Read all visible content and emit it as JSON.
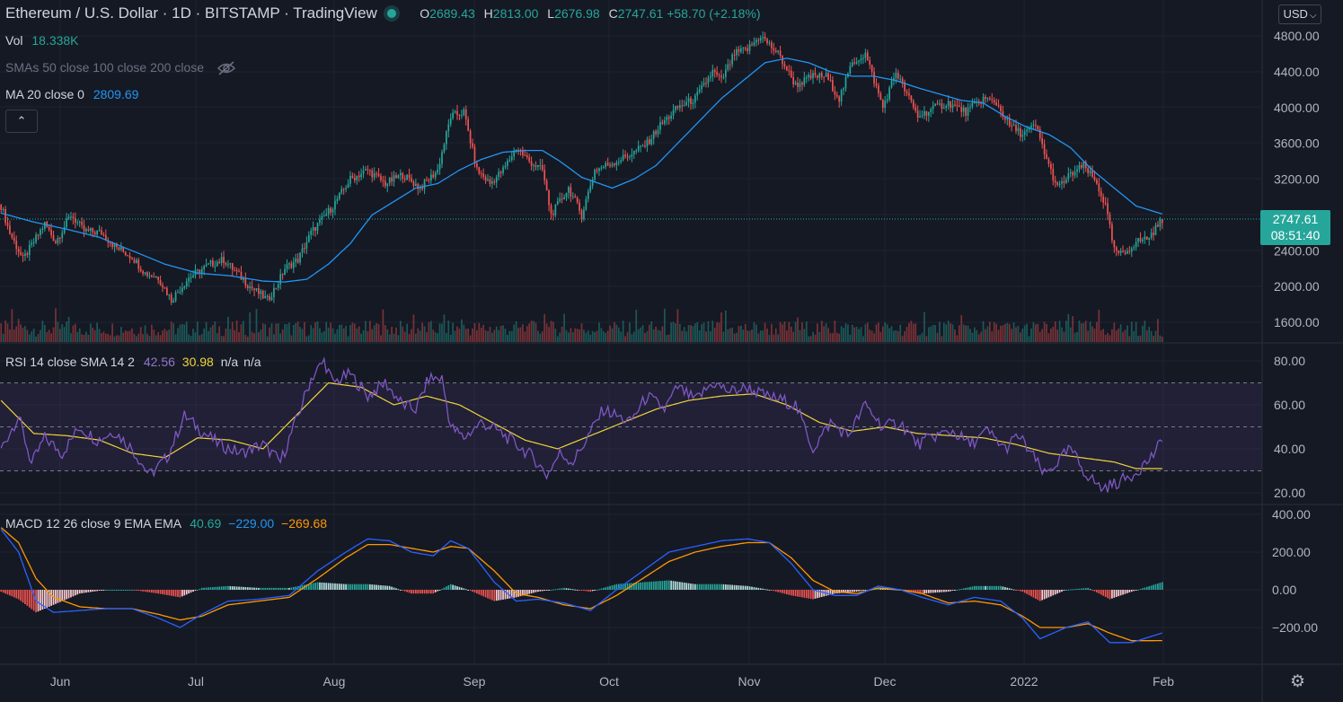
{
  "header": {
    "title": "Ethereum / U.S. Dollar · 1D · BITSTAMP · TradingView",
    "open_label": "O",
    "open": "2689.43",
    "high_label": "H",
    "high": "2813.00",
    "low_label": "L",
    "low": "2676.98",
    "close_label": "C",
    "close": "2747.61",
    "change": "+58.70 (+2.18%)"
  },
  "legend": {
    "vol_label": "Vol",
    "vol_value": "18.338K",
    "sma_label": "SMAs 50 close 100 close 200 close",
    "ma_label": "MA 20 close 0",
    "ma_value": "2809.69",
    "rsi_label": "RSI 14 close SMA 14 2",
    "rsi_value": "42.56",
    "rsi_sma_value": "30.98",
    "rsi_na1": "n/a",
    "rsi_na2": "n/a",
    "macd_label": "MACD 12 26 close 9 EMA EMA",
    "macd_hist": "40.69",
    "macd_line": "−229.00",
    "macd_signal": "−269.68"
  },
  "currency": "USD",
  "last_price": {
    "price": "2747.61",
    "countdown": "08:51:40"
  },
  "colors": {
    "up": "#26a69a",
    "down": "#ef5350",
    "ma": "#2196f3",
    "rsi": "#7e57c2",
    "rsi_sma": "#f0d43a",
    "macd": "#2962ff",
    "signal": "#ff9800"
  },
  "icons": {
    "eye_hidden": "eye-slash-icon",
    "collapse": "chevron-up-icon",
    "settings": "gear-icon"
  },
  "chart_data": [
    {
      "type": "candlestick",
      "title": "Ethereum / U.S. Dollar · 1D · BITSTAMP",
      "x_ticks": [
        "Jun",
        "Jul",
        "Aug",
        "Sep",
        "Oct",
        "Nov",
        "Dec",
        "2022",
        "Feb"
      ],
      "y_ticks": [
        "4800.00",
        "4400.00",
        "4000.00",
        "3600.00",
        "3200.00",
        "2400.00",
        "2000.00",
        "1600.00"
      ],
      "ylim": [
        1600,
        4840
      ],
      "close_path_anchors": [
        [
          0,
          2900
        ],
        [
          4,
          2600
        ],
        [
          10,
          2300
        ],
        [
          15,
          2500
        ],
        [
          20,
          2700
        ],
        [
          25,
          2500
        ],
        [
          32,
          2800
        ],
        [
          38,
          2620
        ],
        [
          46,
          2600
        ],
        [
          52,
          2450
        ],
        [
          60,
          2330
        ],
        [
          66,
          2150
        ],
        [
          72,
          2100
        ],
        [
          78,
          1850
        ],
        [
          86,
          2100
        ],
        [
          96,
          2250
        ],
        [
          102,
          2300
        ],
        [
          108,
          2150
        ],
        [
          114,
          2000
        ],
        [
          122,
          1850
        ],
        [
          126,
          2000
        ],
        [
          130,
          2200
        ],
        [
          136,
          2300
        ],
        [
          142,
          2600
        ],
        [
          152,
          2900
        ],
        [
          160,
          3200
        ],
        [
          168,
          3300
        ],
        [
          176,
          3150
        ],
        [
          184,
          3250
        ],
        [
          192,
          3100
        ],
        [
          200,
          3300
        ],
        [
          206,
          3900
        ],
        [
          212,
          3950
        ],
        [
          218,
          3300
        ],
        [
          224,
          3150
        ],
        [
          230,
          3300
        ],
        [
          236,
          3550
        ],
        [
          242,
          3400
        ],
        [
          248,
          3300
        ],
        [
          252,
          2800
        ],
        [
          260,
          3100
        ],
        [
          266,
          2800
        ],
        [
          272,
          3300
        ],
        [
          282,
          3400
        ],
        [
          290,
          3500
        ],
        [
          296,
          3600
        ],
        [
          302,
          3800
        ],
        [
          310,
          4000
        ],
        [
          318,
          4100
        ],
        [
          326,
          4400
        ],
        [
          330,
          4300
        ],
        [
          336,
          4600
        ],
        [
          342,
          4650
        ],
        [
          348,
          4800
        ],
        [
          356,
          4600
        ],
        [
          364,
          4250
        ],
        [
          372,
          4350
        ],
        [
          378,
          4350
        ],
        [
          384,
          4100
        ],
        [
          390,
          4500
        ],
        [
          396,
          4600
        ],
        [
          404,
          4000
        ],
        [
          410,
          4400
        ],
        [
          416,
          4100
        ],
        [
          420,
          3900
        ],
        [
          428,
          4000
        ],
        [
          434,
          4050
        ],
        [
          442,
          3950
        ],
        [
          450,
          4100
        ],
        [
          456,
          4050
        ],
        [
          462,
          3800
        ],
        [
          468,
          3700
        ],
        [
          474,
          3800
        ],
        [
          480,
          3350
        ],
        [
          484,
          3100
        ],
        [
          490,
          3250
        ],
        [
          496,
          3350
        ],
        [
          502,
          3150
        ],
        [
          506,
          2900
        ],
        [
          510,
          2400
        ],
        [
          514,
          2350
        ],
        [
          520,
          2500
        ],
        [
          526,
          2550
        ],
        [
          532,
          2750
        ]
      ],
      "ma20_anchors": [
        [
          0,
          2820
        ],
        [
          15,
          2720
        ],
        [
          30,
          2640
        ],
        [
          45,
          2550
        ],
        [
          60,
          2400
        ],
        [
          75,
          2250
        ],
        [
          90,
          2150
        ],
        [
          105,
          2120
        ],
        [
          120,
          2060
        ],
        [
          130,
          2050
        ],
        [
          140,
          2080
        ],
        [
          150,
          2250
        ],
        [
          160,
          2480
        ],
        [
          170,
          2800
        ],
        [
          180,
          2950
        ],
        [
          190,
          3100
        ],
        [
          200,
          3150
        ],
        [
          210,
          3300
        ],
        [
          220,
          3420
        ],
        [
          230,
          3500
        ],
        [
          240,
          3520
        ],
        [
          248,
          3520
        ],
        [
          256,
          3400
        ],
        [
          266,
          3220
        ],
        [
          280,
          3100
        ],
        [
          290,
          3200
        ],
        [
          300,
          3350
        ],
        [
          310,
          3600
        ],
        [
          320,
          3850
        ],
        [
          330,
          4100
        ],
        [
          340,
          4300
        ],
        [
          350,
          4500
        ],
        [
          360,
          4550
        ],
        [
          370,
          4500
        ],
        [
          380,
          4400
        ],
        [
          390,
          4350
        ],
        [
          400,
          4350
        ],
        [
          410,
          4300
        ],
        [
          420,
          4220
        ],
        [
          430,
          4150
        ],
        [
          440,
          4080
        ],
        [
          450,
          4050
        ],
        [
          460,
          3900
        ],
        [
          470,
          3780
        ],
        [
          480,
          3700
        ],
        [
          490,
          3550
        ],
        [
          500,
          3300
        ],
        [
          510,
          3100
        ],
        [
          520,
          2900
        ],
        [
          532,
          2810
        ]
      ],
      "n_bars": 533
    },
    {
      "type": "volume",
      "series": [
        {
          "name": "Vol",
          "last_value": "18.338K"
        }
      ]
    },
    {
      "type": "line",
      "title": "RSI 14 close SMA 14 2",
      "y_ticks": [
        "80.00",
        "60.00",
        "40.00",
        "20.00"
      ],
      "ylim": [
        18,
        82
      ],
      "bands": [
        30,
        50,
        70
      ],
      "rsi_anchors": [
        [
          0,
          40
        ],
        [
          8,
          55
        ],
        [
          14,
          33
        ],
        [
          20,
          45
        ],
        [
          28,
          38
        ],
        [
          36,
          50
        ],
        [
          44,
          44
        ],
        [
          52,
          48
        ],
        [
          60,
          40
        ],
        [
          68,
          28
        ],
        [
          76,
          36
        ],
        [
          84,
          55
        ],
        [
          92,
          48
        ],
        [
          100,
          42
        ],
        [
          110,
          38
        ],
        [
          120,
          42
        ],
        [
          128,
          34
        ],
        [
          136,
          55
        ],
        [
          142,
          72
        ],
        [
          148,
          80
        ],
        [
          152,
          70
        ],
        [
          160,
          74
        ],
        [
          168,
          64
        ],
        [
          176,
          70
        ],
        [
          184,
          60
        ],
        [
          190,
          58
        ],
        [
          196,
          72
        ],
        [
          202,
          72
        ],
        [
          206,
          50
        ],
        [
          212,
          45
        ],
        [
          220,
          52
        ],
        [
          228,
          48
        ],
        [
          236,
          42
        ],
        [
          244,
          36
        ],
        [
          250,
          28
        ],
        [
          256,
          38
        ],
        [
          262,
          34
        ],
        [
          268,
          44
        ],
        [
          276,
          58
        ],
        [
          288,
          52
        ],
        [
          296,
          64
        ],
        [
          304,
          58
        ],
        [
          310,
          68
        ],
        [
          318,
          62
        ],
        [
          326,
          70
        ],
        [
          334,
          66
        ],
        [
          342,
          68
        ],
        [
          350,
          64
        ],
        [
          358,
          62
        ],
        [
          364,
          60
        ],
        [
          372,
          40
        ],
        [
          380,
          52
        ],
        [
          388,
          46
        ],
        [
          396,
          60
        ],
        [
          404,
          50
        ],
        [
          412,
          52
        ],
        [
          420,
          42
        ],
        [
          428,
          46
        ],
        [
          436,
          48
        ],
        [
          444,
          42
        ],
        [
          452,
          48
        ],
        [
          460,
          40
        ],
        [
          466,
          46
        ],
        [
          472,
          38
        ],
        [
          478,
          28
        ],
        [
          484,
          34
        ],
        [
          490,
          40
        ],
        [
          496,
          30
        ],
        [
          504,
          22
        ],
        [
          510,
          24
        ],
        [
          518,
          28
        ],
        [
          526,
          35
        ],
        [
          532,
          43
        ]
      ],
      "sma_anchors": [
        [
          0,
          62
        ],
        [
          15,
          47
        ],
        [
          30,
          46
        ],
        [
          45,
          44
        ],
        [
          60,
          38
        ],
        [
          75,
          36
        ],
        [
          90,
          45
        ],
        [
          105,
          44
        ],
        [
          120,
          40
        ],
        [
          135,
          55
        ],
        [
          150,
          70
        ],
        [
          165,
          68
        ],
        [
          180,
          60
        ],
        [
          195,
          64
        ],
        [
          210,
          60
        ],
        [
          225,
          52
        ],
        [
          240,
          44
        ],
        [
          255,
          40
        ],
        [
          270,
          46
        ],
        [
          285,
          52
        ],
        [
          300,
          58
        ],
        [
          315,
          62
        ],
        [
          330,
          64
        ],
        [
          345,
          65
        ],
        [
          360,
          60
        ],
        [
          375,
          52
        ],
        [
          390,
          48
        ],
        [
          405,
          50
        ],
        [
          420,
          47
        ],
        [
          435,
          46
        ],
        [
          450,
          45
        ],
        [
          465,
          42
        ],
        [
          480,
          38
        ],
        [
          495,
          36
        ],
        [
          510,
          34
        ],
        [
          520,
          31
        ],
        [
          532,
          31
        ]
      ]
    },
    {
      "type": "bar+line",
      "title": "MACD 12 26 close 9 EMA EMA",
      "y_ticks": [
        "400.00",
        "200.00",
        "0.00",
        "−200.00"
      ],
      "ylim": [
        -370,
        410
      ],
      "macd_anchors": [
        [
          0,
          320
        ],
        [
          8,
          200
        ],
        [
          16,
          -60
        ],
        [
          24,
          -120
        ],
        [
          36,
          -110
        ],
        [
          48,
          -100
        ],
        [
          60,
          -100
        ],
        [
          72,
          -150
        ],
        [
          82,
          -200
        ],
        [
          92,
          -130
        ],
        [
          104,
          -60
        ],
        [
          118,
          -50
        ],
        [
          132,
          -30
        ],
        [
          145,
          100
        ],
        [
          158,
          200
        ],
        [
          168,
          270
        ],
        [
          178,
          260
        ],
        [
          188,
          200
        ],
        [
          198,
          180
        ],
        [
          206,
          260
        ],
        [
          214,
          220
        ],
        [
          226,
          40
        ],
        [
          236,
          -60
        ],
        [
          246,
          -50
        ],
        [
          258,
          -70
        ],
        [
          270,
          -110
        ],
        [
          282,
          0
        ],
        [
          294,
          100
        ],
        [
          306,
          200
        ],
        [
          318,
          230
        ],
        [
          330,
          260
        ],
        [
          342,
          270
        ],
        [
          352,
          250
        ],
        [
          362,
          140
        ],
        [
          372,
          0
        ],
        [
          382,
          -30
        ],
        [
          392,
          -30
        ],
        [
          402,
          20
        ],
        [
          412,
          0
        ],
        [
          422,
          -40
        ],
        [
          434,
          -80
        ],
        [
          446,
          -40
        ],
        [
          458,
          -60
        ],
        [
          468,
          -150
        ],
        [
          476,
          -260
        ],
        [
          488,
          -200
        ],
        [
          498,
          -170
        ],
        [
          508,
          -280
        ],
        [
          518,
          -280
        ],
        [
          532,
          -229
        ]
      ],
      "signal_anchors": [
        [
          0,
          330
        ],
        [
          8,
          250
        ],
        [
          16,
          60
        ],
        [
          24,
          -40
        ],
        [
          36,
          -90
        ],
        [
          48,
          -100
        ],
        [
          60,
          -100
        ],
        [
          72,
          -130
        ],
        [
          82,
          -160
        ],
        [
          92,
          -140
        ],
        [
          104,
          -80
        ],
        [
          118,
          -60
        ],
        [
          132,
          -40
        ],
        [
          145,
          60
        ],
        [
          158,
          170
        ],
        [
          168,
          240
        ],
        [
          178,
          240
        ],
        [
          188,
          220
        ],
        [
          198,
          200
        ],
        [
          206,
          230
        ],
        [
          214,
          220
        ],
        [
          226,
          100
        ],
        [
          236,
          -20
        ],
        [
          246,
          -40
        ],
        [
          258,
          -80
        ],
        [
          270,
          -100
        ],
        [
          282,
          -30
        ],
        [
          294,
          60
        ],
        [
          306,
          150
        ],
        [
          318,
          200
        ],
        [
          330,
          230
        ],
        [
          342,
          250
        ],
        [
          352,
          250
        ],
        [
          362,
          170
        ],
        [
          372,
          50
        ],
        [
          382,
          -10
        ],
        [
          392,
          -20
        ],
        [
          402,
          10
        ],
        [
          412,
          0
        ],
        [
          422,
          -20
        ],
        [
          434,
          -70
        ],
        [
          446,
          -60
        ],
        [
          458,
          -80
        ],
        [
          468,
          -140
        ],
        [
          476,
          -200
        ],
        [
          488,
          -200
        ],
        [
          498,
          -180
        ],
        [
          508,
          -230
        ],
        [
          518,
          -270
        ],
        [
          532,
          -269.68
        ]
      ],
      "last_hist": 40.69
    }
  ]
}
